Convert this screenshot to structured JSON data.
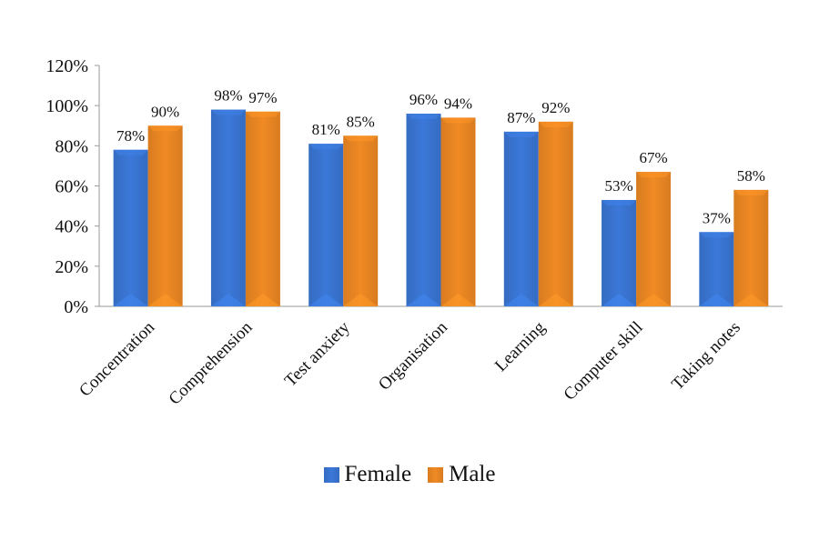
{
  "chart_data": {
    "type": "bar",
    "categories": [
      "Concentration",
      "Comprehension",
      "Test anxiety",
      "Organisation",
      "Learning",
      "Computer skill",
      "Taking notes"
    ],
    "series": [
      {
        "name": "Female",
        "values": [
          78,
          98,
          81,
          96,
          87,
          53,
          37
        ],
        "labels": [
          "78%",
          "98%",
          "81%",
          "96%",
          "87%",
          "53%",
          "37%"
        ],
        "color": "#3b78d8"
      },
      {
        "name": "Male",
        "values": [
          90,
          97,
          85,
          94,
          92,
          67,
          58
        ],
        "labels": [
          "90%",
          "97%",
          "85%",
          "94%",
          "92%",
          "67%",
          "58%"
        ],
        "color": "#f08a24"
      }
    ],
    "yticks": [
      "0%",
      "20%",
      "40%",
      "60%",
      "80%",
      "100%",
      "120%"
    ],
    "ylim": [
      0,
      120
    ],
    "ystep": 20,
    "grid": false,
    "legend_position": "bottom",
    "title": "",
    "xlabel": "",
    "ylabel": ""
  }
}
